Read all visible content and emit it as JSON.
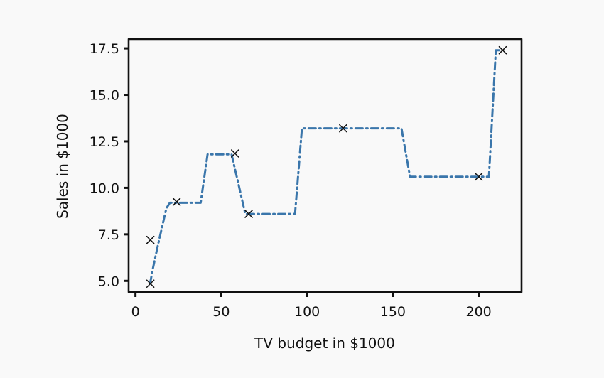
{
  "chart_data": {
    "type": "line",
    "title": "",
    "xlabel": "TV budget in $1000",
    "ylabel": "Sales in $1000",
    "xlim": [
      -4,
      225
    ],
    "ylim": [
      4.4,
      18.0
    ],
    "grid": false,
    "x_ticks": [
      0,
      50,
      100,
      150,
      200
    ],
    "y_ticks": [
      5.0,
      7.5,
      10.0,
      12.5,
      15.0,
      17.5
    ],
    "x_tick_labels": [
      "0",
      "50",
      "100",
      "150",
      "200"
    ],
    "y_tick_labels": [
      "5.0",
      "7.5",
      "10.0",
      "12.5",
      "15.0",
      "17.5"
    ],
    "series": [
      {
        "kind": "step-fit",
        "color": "#3a76ab",
        "style": "dash-dot",
        "points": [
          [
            8.5,
            4.85
          ],
          [
            10,
            5.6
          ],
          [
            13,
            6.9
          ],
          [
            16,
            8.1
          ],
          [
            18,
            8.9
          ],
          [
            20,
            9.2
          ],
          [
            38,
            9.2
          ],
          [
            42,
            11.8
          ],
          [
            56,
            11.8
          ],
          [
            60,
            10.2
          ],
          [
            64,
            8.6
          ],
          [
            93,
            8.6
          ],
          [
            97,
            13.2
          ],
          [
            155,
            13.2
          ],
          [
            160,
            10.6
          ],
          [
            206,
            10.6
          ],
          [
            210,
            17.4
          ],
          [
            214,
            17.4
          ]
        ]
      },
      {
        "kind": "scatter",
        "marker": "x",
        "color": "#111111",
        "points": [
          [
            8.7,
            4.85
          ],
          [
            8.7,
            7.2
          ],
          [
            24,
            9.25
          ],
          [
            58,
            11.85
          ],
          [
            66,
            8.6
          ],
          [
            121,
            13.2
          ],
          [
            200,
            10.6
          ],
          [
            214,
            17.4
          ]
        ]
      }
    ]
  }
}
